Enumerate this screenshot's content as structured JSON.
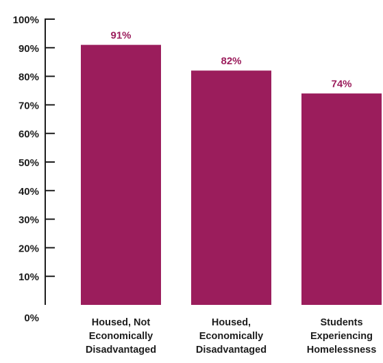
{
  "chart_data": {
    "type": "bar",
    "categories": [
      [
        "Housed, Not",
        "Economically",
        "Disadvantaged"
      ],
      [
        "Housed,",
        "Economically",
        "Disadvantaged"
      ],
      [
        "Students",
        "Experiencing",
        "Homelessness"
      ]
    ],
    "values": [
      91,
      82,
      74
    ],
    "data_labels": [
      "91%",
      "82%",
      "74%"
    ],
    "ylim": [
      0,
      100
    ],
    "yticks": [
      0,
      10,
      20,
      30,
      40,
      50,
      60,
      70,
      80,
      90,
      100
    ],
    "ytick_labels": [
      "0%",
      "10%",
      "20%",
      "30%",
      "40%",
      "50%",
      "60%",
      "70%",
      "80%",
      "90%",
      "100%"
    ],
    "title": "",
    "xlabel": "",
    "ylabel": "",
    "grid": false,
    "legend": "none",
    "bar_color": "#9b1d5c"
  }
}
